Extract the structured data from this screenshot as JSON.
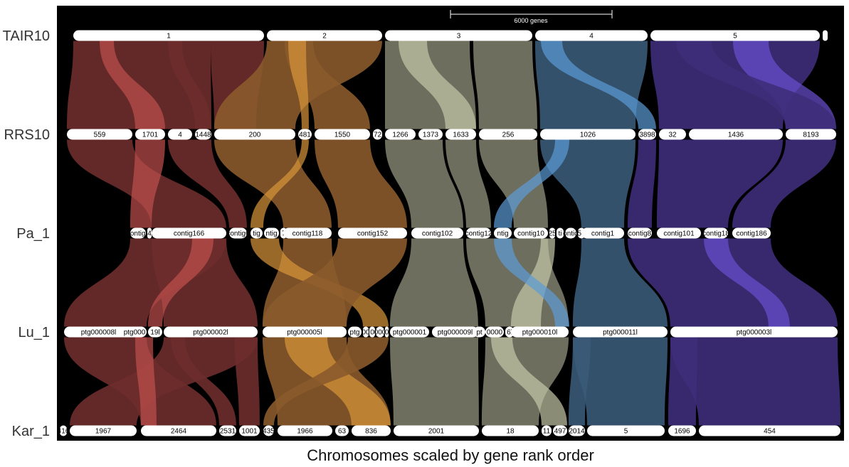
{
  "caption": "Chromosomes scaled by gene rank order",
  "scale_bar": {
    "label": "6000 genes",
    "genes": 6000
  },
  "colors": {
    "background": "#000000",
    "chromosome_fill": "#ffffff",
    "chr1": "#6e2c2c",
    "chr1_hi": "#c0504d",
    "chr2": "#8a5a2b",
    "chr2_hi": "#d9963a",
    "chr3": "#7a7a68",
    "chr3_hi": "#c5c8a8",
    "chr4": "#3a5a78",
    "chr4_hi": "#5b9bd5",
    "chr5": "#3e2e7a",
    "chr5_hi": "#6a50d0"
  },
  "genomes": [
    {
      "name": "TAIR10",
      "chromosomes": [
        {
          "label": "1",
          "start": 103,
          "end": 371
        },
        {
          "label": "2",
          "start": 375,
          "end": 537
        },
        {
          "label": "3",
          "start": 541,
          "end": 748
        },
        {
          "label": "4",
          "start": 752,
          "end": 910
        },
        {
          "label": "5",
          "start": 914,
          "end": 1152
        },
        {
          "label": "",
          "start": 1156,
          "end": 1163
        }
      ]
    },
    {
      "name": "RRS10",
      "chromosomes": [
        {
          "label": "559",
          "start": 94,
          "end": 186
        },
        {
          "label": "1701",
          "start": 190,
          "end": 232
        },
        {
          "label": "4",
          "start": 236,
          "end": 270
        },
        {
          "label": "1448",
          "start": 274,
          "end": 297
        },
        {
          "label": "200",
          "start": 301,
          "end": 415
        },
        {
          "label": "481",
          "start": 419,
          "end": 438
        },
        {
          "label": "1550",
          "start": 442,
          "end": 520
        },
        {
          "label": "72",
          "start": 524,
          "end": 537
        },
        {
          "label": "1266",
          "start": 541,
          "end": 584
        },
        {
          "label": "1373",
          "start": 588,
          "end": 622
        },
        {
          "label": "1633",
          "start": 626,
          "end": 669
        },
        {
          "label": "256",
          "start": 673,
          "end": 755
        },
        {
          "label": "1026",
          "start": 759,
          "end": 893
        },
        {
          "label": "3898",
          "start": 897,
          "end": 922
        },
        {
          "label": "32",
          "start": 926,
          "end": 964
        },
        {
          "label": "1436",
          "start": 968,
          "end": 1100
        },
        {
          "label": "8193",
          "start": 1104,
          "end": 1175
        }
      ]
    },
    {
      "name": "Pa_1",
      "chromosomes": [
        {
          "label": "contig1",
          "start": 183,
          "end": 205
        },
        {
          "label": "4",
          "start": 207,
          "end": 213
        },
        {
          "label": "contig166",
          "start": 213,
          "end": 318
        },
        {
          "label": "contig6",
          "start": 322,
          "end": 347
        },
        {
          "label": "tig",
          "start": 352,
          "end": 369
        },
        {
          "label": "ntig",
          "start": 371,
          "end": 392
        },
        {
          "label": "7",
          "start": 394,
          "end": 403
        },
        {
          "label": "contig118",
          "start": 398,
          "end": 466
        },
        {
          "label": "contig152",
          "start": 475,
          "end": 572
        },
        {
          "label": "contig102",
          "start": 578,
          "end": 651
        },
        {
          "label": "contig12",
          "start": 655,
          "end": 690
        },
        {
          "label": "ntig",
          "start": 694,
          "end": 719
        },
        {
          "label": "contig10",
          "start": 722,
          "end": 770
        },
        {
          "label": "25",
          "start": 772,
          "end": 780
        },
        {
          "label": "ti",
          "start": 782,
          "end": 792
        },
        {
          "label": "ontig",
          "start": 794,
          "end": 810
        },
        {
          "label": "56",
          "start": 812,
          "end": 822
        },
        {
          "label": "contig1",
          "start": 817,
          "end": 877
        },
        {
          "label": "contig8",
          "start": 882,
          "end": 916
        },
        {
          "label": "contig101",
          "start": 923,
          "end": 985
        },
        {
          "label": "contig18",
          "start": 989,
          "end": 1023
        },
        {
          "label": "contig186",
          "start": 1029,
          "end": 1083
        }
      ]
    },
    {
      "name": "Lu_1",
      "chromosomes": [
        {
          "label": "ptg000008l",
          "start": 90,
          "end": 187
        },
        {
          "label": "ptg000",
          "start": 172,
          "end": 206
        },
        {
          "label": "19l",
          "start": 208,
          "end": 228
        },
        {
          "label": "ptg000002l",
          "start": 230,
          "end": 362
        },
        {
          "label": "ptg000005l",
          "start": 369,
          "end": 487
        },
        {
          "label": "ptg",
          "start": 489,
          "end": 508
        },
        {
          "label": "00",
          "start": 510,
          "end": 518
        },
        {
          "label": "0",
          "start": 519,
          "end": 527
        },
        {
          "label": "000",
          "start": 528,
          "end": 540
        },
        {
          "label": "0",
          "start": 541,
          "end": 546
        },
        {
          "label": "ptg000001",
          "start": 548,
          "end": 603
        },
        {
          "label": "ptg000009l",
          "start": 607,
          "end": 672
        },
        {
          "label": "pt",
          "start": 665,
          "end": 682
        },
        {
          "label": "0000",
          "start": 682,
          "end": 708
        },
        {
          "label": "6l",
          "start": 710,
          "end": 722
        },
        {
          "label": "ptg000010l",
          "start": 718,
          "end": 799
        },
        {
          "label": "ptg000011l",
          "start": 805,
          "end": 938
        },
        {
          "label": "ptg000003l",
          "start": 942,
          "end": 1177
        }
      ]
    },
    {
      "name": "Kar_1",
      "chromosomes": [
        {
          "label": "416",
          "start": 84,
          "end": 94
        },
        {
          "label": "1967",
          "start": 98,
          "end": 192
        },
        {
          "label": "2464",
          "start": 198,
          "end": 304
        },
        {
          "label": "2531",
          "start": 308,
          "end": 332
        },
        {
          "label": "1001",
          "start": 336,
          "end": 365
        },
        {
          "label": "435",
          "start": 370,
          "end": 385
        },
        {
          "label": "1966",
          "start": 390,
          "end": 467
        },
        {
          "label": "63",
          "start": 471,
          "end": 490
        },
        {
          "label": "836",
          "start": 494,
          "end": 549
        },
        {
          "label": "2001",
          "start": 553,
          "end": 673
        },
        {
          "label": "18",
          "start": 677,
          "end": 757
        },
        {
          "label": "11",
          "start": 761,
          "end": 775
        },
        {
          "label": "497",
          "start": 777,
          "end": 797
        },
        {
          "label": "2014",
          "start": 799,
          "end": 822
        },
        {
          "label": "5",
          "start": 825,
          "end": 934
        },
        {
          "label": "1696",
          "start": 939,
          "end": 978
        },
        {
          "label": "454",
          "start": 982,
          "end": 1181
        }
      ]
    }
  ],
  "ribbons": [
    {
      "l": 0,
      "color": "chr1",
      "a": [
        103,
        296
      ],
      "b": [
        94,
        297
      ]
    },
    {
      "l": 0,
      "color": "chr1",
      "a": [
        296,
        371
      ],
      "b": [
        301,
        360
      ]
    },
    {
      "l": 0,
      "color": "chr1_hi",
      "a": [
        140,
        160
      ],
      "b": [
        190,
        232
      ]
    },
    {
      "l": 0,
      "color": "chr1",
      "a": [
        236,
        256
      ],
      "b": [
        274,
        297
      ]
    },
    {
      "l": 0,
      "color": "chr2",
      "a": [
        375,
        537
      ],
      "b": [
        301,
        415
      ]
    },
    {
      "l": 0,
      "color": "chr2",
      "a": [
        400,
        440
      ],
      "b": [
        442,
        520
      ]
    },
    {
      "l": 0,
      "color": "chr2_hi",
      "a": [
        405,
        430
      ],
      "b": [
        424,
        434
      ]
    },
    {
      "l": 0,
      "color": "chr3",
      "a": [
        541,
        660
      ],
      "b": [
        541,
        669
      ]
    },
    {
      "l": 0,
      "color": "chr3_hi",
      "a": [
        560,
        600
      ],
      "b": [
        626,
        669
      ]
    },
    {
      "l": 0,
      "color": "chr3",
      "a": [
        665,
        748
      ],
      "b": [
        673,
        755
      ]
    },
    {
      "l": 0,
      "color": "chr4",
      "a": [
        752,
        910
      ],
      "b": [
        759,
        893
      ]
    },
    {
      "l": 0,
      "color": "chr4_hi",
      "a": [
        760,
        790
      ],
      "b": [
        897,
        922
      ]
    },
    {
      "l": 0,
      "color": "chr5",
      "a": [
        914,
        1152
      ],
      "b": [
        926,
        1100
      ]
    },
    {
      "l": 0,
      "color": "chr5_hi",
      "a": [
        1030,
        1080
      ],
      "b": [
        1104,
        1175
      ]
    },
    {
      "l": 0,
      "color": "chr5",
      "a": [
        950,
        1000
      ],
      "b": [
        1104,
        1175
      ]
    },
    {
      "l": 1,
      "color": "chr1",
      "a": [
        94,
        186
      ],
      "b": [
        213,
        318
      ]
    },
    {
      "l": 1,
      "color": "chr1_hi",
      "a": [
        190,
        232
      ],
      "b": [
        183,
        213
      ]
    },
    {
      "l": 1,
      "color": "chr1",
      "a": [
        236,
        297
      ],
      "b": [
        322,
        347
      ]
    },
    {
      "l": 1,
      "color": "chr2",
      "a": [
        301,
        415
      ],
      "b": [
        398,
        466
      ]
    },
    {
      "l": 1,
      "color": "chr2",
      "a": [
        442,
        520
      ],
      "b": [
        475,
        572
      ]
    },
    {
      "l": 1,
      "color": "chr2_hi",
      "a": [
        424,
        434
      ],
      "b": [
        352,
        370
      ]
    },
    {
      "l": 1,
      "color": "chr3",
      "a": [
        541,
        622
      ],
      "b": [
        578,
        651
      ]
    },
    {
      "l": 1,
      "color": "chr3",
      "a": [
        626,
        669
      ],
      "b": [
        655,
        690
      ]
    },
    {
      "l": 1,
      "color": "chr3",
      "a": [
        673,
        755
      ],
      "b": [
        722,
        770
      ]
    },
    {
      "l": 1,
      "color": "chr4",
      "a": [
        759,
        893
      ],
      "b": [
        817,
        877
      ]
    },
    {
      "l": 1,
      "color": "chr4_hi",
      "a": [
        780,
        800
      ],
      "b": [
        694,
        719
      ]
    },
    {
      "l": 1,
      "color": "chr5",
      "a": [
        926,
        1100
      ],
      "b": [
        923,
        1023
      ]
    },
    {
      "l": 1,
      "color": "chr5",
      "a": [
        1104,
        1175
      ],
      "b": [
        1029,
        1083
      ]
    },
    {
      "l": 1,
      "color": "chr5",
      "a": [
        897,
        922
      ],
      "b": [
        882,
        916
      ]
    },
    {
      "l": 2,
      "color": "chr1",
      "a": [
        183,
        318
      ],
      "b": [
        90,
        206
      ]
    },
    {
      "l": 2,
      "color": "chr1",
      "a": [
        213,
        318
      ],
      "b": [
        230,
        362
      ]
    },
    {
      "l": 2,
      "color": "chr1_hi",
      "a": [
        270,
        300
      ],
      "b": [
        208,
        228
      ]
    },
    {
      "l": 2,
      "color": "chr2",
      "a": [
        398,
        466
      ],
      "b": [
        369,
        487
      ]
    },
    {
      "l": 2,
      "color": "chr2_hi",
      "a": [
        352,
        392
      ],
      "b": [
        510,
        546
      ]
    },
    {
      "l": 2,
      "color": "chr2",
      "a": [
        475,
        572
      ],
      "b": [
        369,
        487
      ]
    },
    {
      "l": 2,
      "color": "chr3",
      "a": [
        578,
        651
      ],
      "b": [
        548,
        672
      ]
    },
    {
      "l": 2,
      "color": "chr3",
      "a": [
        655,
        770
      ],
      "b": [
        682,
        799
      ]
    },
    {
      "l": 2,
      "color": "chr3_hi",
      "a": [
        760,
        780
      ],
      "b": [
        718,
        760
      ]
    },
    {
      "l": 2,
      "color": "chr4",
      "a": [
        817,
        877
      ],
      "b": [
        805,
        938
      ]
    },
    {
      "l": 2,
      "color": "chr4_hi",
      "a": [
        694,
        719
      ],
      "b": [
        780,
        800
      ]
    },
    {
      "l": 2,
      "color": "chr5",
      "a": [
        882,
        1083
      ],
      "b": [
        942,
        1177
      ]
    },
    {
      "l": 2,
      "color": "chr5_hi",
      "a": [
        989,
        1023
      ],
      "b": [
        1080,
        1110
      ]
    },
    {
      "l": 3,
      "color": "chr1",
      "a": [
        90,
        206
      ],
      "b": [
        198,
        304
      ]
    },
    {
      "l": 3,
      "color": "chr1",
      "a": [
        230,
        362
      ],
      "b": [
        98,
        192
      ]
    },
    {
      "l": 3,
      "color": "chr1_hi",
      "a": [
        190,
        215
      ],
      "b": [
        198,
        220
      ]
    },
    {
      "l": 3,
      "color": "chr1",
      "a": [
        330,
        362
      ],
      "b": [
        336,
        365
      ]
    },
    {
      "l": 3,
      "color": "chr1",
      "a": [
        240,
        260
      ],
      "b": [
        308,
        332
      ]
    },
    {
      "l": 3,
      "color": "chr2",
      "a": [
        369,
        487
      ],
      "b": [
        390,
        549
      ]
    },
    {
      "l": 3,
      "color": "chr2_hi",
      "a": [
        400,
        460
      ],
      "b": [
        494,
        549
      ]
    },
    {
      "l": 3,
      "color": "chr2",
      "a": [
        489,
        546
      ],
      "b": [
        370,
        385
      ]
    },
    {
      "l": 3,
      "color": "chr3",
      "a": [
        548,
        672
      ],
      "b": [
        553,
        673
      ]
    },
    {
      "l": 3,
      "color": "chr3",
      "a": [
        682,
        799
      ],
      "b": [
        677,
        757
      ]
    },
    {
      "l": 3,
      "color": "chr3_hi",
      "a": [
        690,
        720
      ],
      "b": [
        761,
        797
      ]
    },
    {
      "l": 3,
      "color": "chr4",
      "a": [
        805,
        938
      ],
      "b": [
        825,
        934
      ]
    },
    {
      "l": 3,
      "color": "chr4",
      "a": [
        805,
        830
      ],
      "b": [
        799,
        822
      ]
    },
    {
      "l": 3,
      "color": "chr5",
      "a": [
        942,
        1177
      ],
      "b": [
        982,
        1181
      ]
    },
    {
      "l": 3,
      "color": "chr5",
      "a": [
        942,
        980
      ],
      "b": [
        939,
        978
      ]
    }
  ]
}
